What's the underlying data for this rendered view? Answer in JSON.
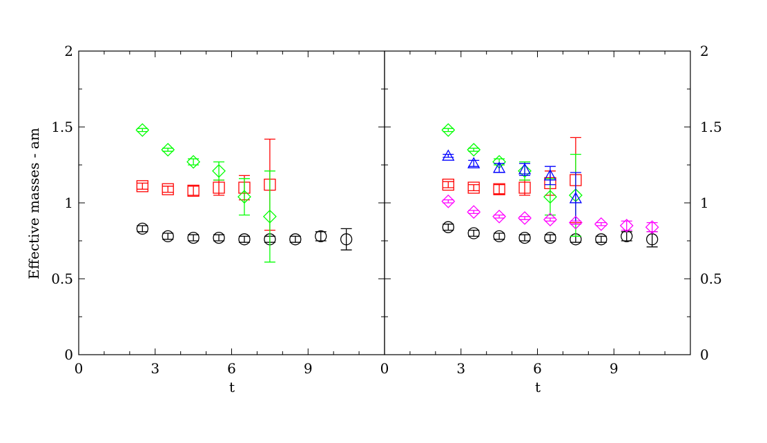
{
  "chart_data": [
    {
      "type": "scatter",
      "panel": "left",
      "xlabel": "t",
      "ylabel": "Effective masses - am",
      "xlim": [
        0,
        12
      ],
      "ylim": [
        0,
        2
      ],
      "x_ticks": [
        0,
        3,
        6,
        9
      ],
      "y_ticks": [
        0,
        0.5,
        1,
        1.5,
        2
      ],
      "y_tick_labels": [
        "0",
        "0.5",
        "1",
        "1.5",
        "2"
      ],
      "grid": false,
      "series": [
        {
          "marker": "circle",
          "color": "#000000",
          "points": [
            {
              "x": 2.5,
              "y": 0.83,
              "err": 0.02
            },
            {
              "x": 3.5,
              "y": 0.78,
              "err": 0.02
            },
            {
              "x": 4.5,
              "y": 0.77,
              "err": 0.02
            },
            {
              "x": 5.5,
              "y": 0.77,
              "err": 0.02
            },
            {
              "x": 6.5,
              "y": 0.76,
              "err": 0.02
            },
            {
              "x": 7.5,
              "y": 0.76,
              "err": 0.02
            },
            {
              "x": 8.5,
              "y": 0.76,
              "err": 0.02
            },
            {
              "x": 9.5,
              "y": 0.78,
              "err": 0.03
            },
            {
              "x": 10.5,
              "y": 0.76,
              "err": 0.07
            }
          ]
        },
        {
          "marker": "square",
          "color": "#ff0000",
          "points": [
            {
              "x": 2.5,
              "y": 1.11,
              "err": 0.02
            },
            {
              "x": 3.5,
              "y": 1.09,
              "err": 0.02
            },
            {
              "x": 4.5,
              "y": 1.08,
              "err": 0.03
            },
            {
              "x": 5.5,
              "y": 1.1,
              "err": 0.05
            },
            {
              "x": 6.5,
              "y": 1.1,
              "err": 0.08
            },
            {
              "x": 7.5,
              "y": 1.12,
              "err": 0.3
            }
          ]
        },
        {
          "marker": "diamond",
          "color": "#00ff00",
          "points": [
            {
              "x": 2.5,
              "y": 1.48,
              "err": 0.01
            },
            {
              "x": 3.5,
              "y": 1.35,
              "err": 0.01
            },
            {
              "x": 4.5,
              "y": 1.27,
              "err": 0.02
            },
            {
              "x": 5.5,
              "y": 1.21,
              "err": 0.06
            },
            {
              "x": 6.5,
              "y": 1.04,
              "err": 0.12
            },
            {
              "x": 7.5,
              "y": 0.91,
              "err": 0.3
            }
          ]
        }
      ]
    },
    {
      "type": "scatter",
      "panel": "right",
      "xlabel": "t",
      "ylabel": "",
      "xlim": [
        0,
        12
      ],
      "ylim": [
        0,
        2
      ],
      "x_ticks": [
        0,
        3,
        6,
        9
      ],
      "y_ticks": [
        0,
        0.5,
        1,
        1.5,
        2
      ],
      "y_tick_labels": [
        "0",
        "0.5",
        "1",
        "1.5",
        "2"
      ],
      "grid": false,
      "series": [
        {
          "marker": "circle",
          "color": "#000000",
          "points": [
            {
              "x": 2.5,
              "y": 0.84,
              "err": 0.02
            },
            {
              "x": 3.5,
              "y": 0.8,
              "err": 0.02
            },
            {
              "x": 4.5,
              "y": 0.78,
              "err": 0.02
            },
            {
              "x": 5.5,
              "y": 0.77,
              "err": 0.02
            },
            {
              "x": 6.5,
              "y": 0.77,
              "err": 0.02
            },
            {
              "x": 7.5,
              "y": 0.76,
              "err": 0.02
            },
            {
              "x": 8.5,
              "y": 0.76,
              "err": 0.02
            },
            {
              "x": 9.5,
              "y": 0.78,
              "err": 0.03
            },
            {
              "x": 10.5,
              "y": 0.76,
              "err": 0.05
            }
          ]
        },
        {
          "marker": "square",
          "color": "#ff0000",
          "points": [
            {
              "x": 2.5,
              "y": 1.12,
              "err": 0.02
            },
            {
              "x": 3.5,
              "y": 1.1,
              "err": 0.02
            },
            {
              "x": 4.5,
              "y": 1.09,
              "err": 0.03
            },
            {
              "x": 5.5,
              "y": 1.1,
              "err": 0.05
            },
            {
              "x": 6.5,
              "y": 1.13,
              "err": 0.08
            },
            {
              "x": 7.5,
              "y": 1.15,
              "err": 0.28
            }
          ]
        },
        {
          "marker": "diamond",
          "color": "#00ff00",
          "points": [
            {
              "x": 2.5,
              "y": 1.48,
              "err": 0.01
            },
            {
              "x": 3.5,
              "y": 1.35,
              "err": 0.01
            },
            {
              "x": 4.5,
              "y": 1.27,
              "err": 0.02
            },
            {
              "x": 5.5,
              "y": 1.21,
              "err": 0.06
            },
            {
              "x": 6.5,
              "y": 1.04,
              "err": 0.12
            },
            {
              "x": 7.5,
              "y": 1.05,
              "err": 0.27
            }
          ]
        },
        {
          "marker": "triangle",
          "color": "#0000ff",
          "points": [
            {
              "x": 2.5,
              "y": 1.31,
              "err": 0.01
            },
            {
              "x": 3.5,
              "y": 1.26,
              "err": 0.02
            },
            {
              "x": 4.5,
              "y": 1.23,
              "err": 0.03
            },
            {
              "x": 5.5,
              "y": 1.22,
              "err": 0.04
            },
            {
              "x": 6.5,
              "y": 1.18,
              "err": 0.06
            },
            {
              "x": 7.5,
              "y": 1.03,
              "err": 0.17
            }
          ]
        },
        {
          "marker": "diamond",
          "color": "#ff00ff",
          "points": [
            {
              "x": 2.5,
              "y": 1.01,
              "err": 0.01
            },
            {
              "x": 3.5,
              "y": 0.94,
              "err": 0.01
            },
            {
              "x": 4.5,
              "y": 0.91,
              "err": 0.01
            },
            {
              "x": 5.5,
              "y": 0.9,
              "err": 0.01
            },
            {
              "x": 6.5,
              "y": 0.89,
              "err": 0.01
            },
            {
              "x": 7.5,
              "y": 0.87,
              "err": 0.01
            },
            {
              "x": 8.5,
              "y": 0.86,
              "err": 0.01
            },
            {
              "x": 9.5,
              "y": 0.85,
              "err": 0.03
            },
            {
              "x": 10.5,
              "y": 0.84,
              "err": 0.03
            }
          ]
        }
      ]
    }
  ]
}
